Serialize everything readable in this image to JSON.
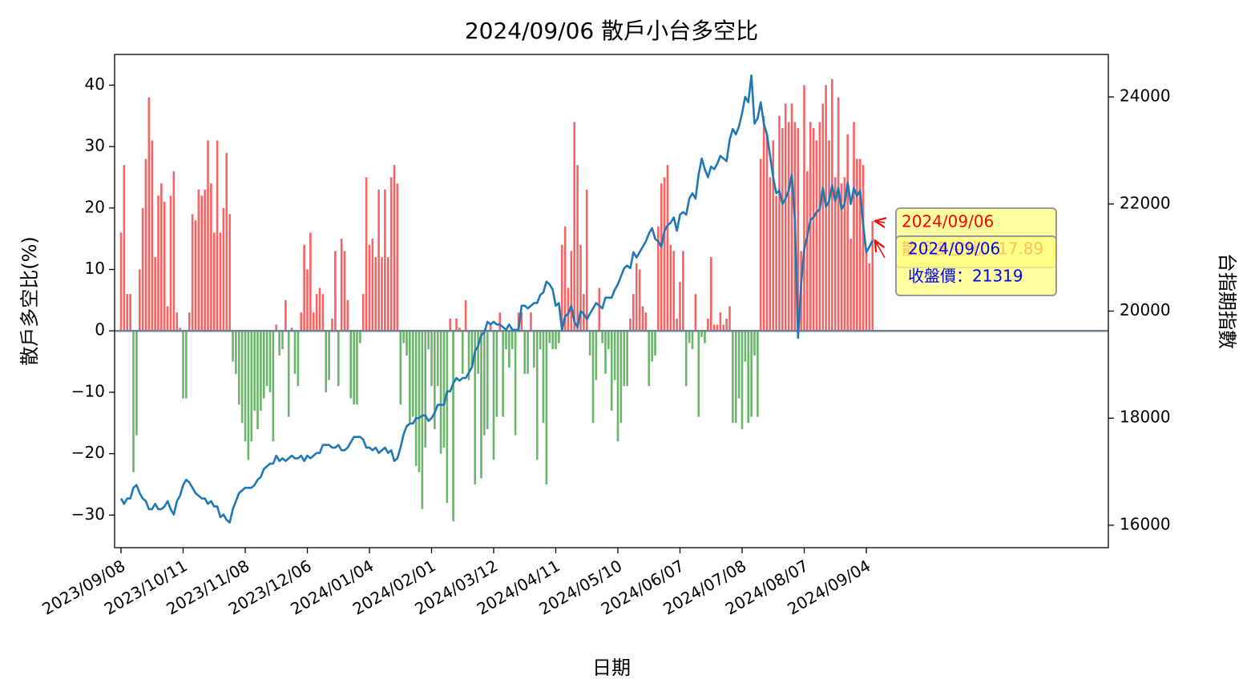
{
  "chart_data": {
    "type": "bar-line",
    "title": "2024/09/06 散戶小台多空比",
    "xlabel": "日期",
    "ylabel": "散戶多空比(%)",
    "y2label": "台指期指數",
    "categories": [
      "2023/09/08",
      null,
      null,
      null,
      null,
      null,
      null,
      null,
      null,
      null,
      null,
      null,
      null,
      null,
      null,
      null,
      null,
      null,
      null,
      null,
      "2023/10/11",
      null,
      null,
      null,
      null,
      null,
      null,
      null,
      null,
      null,
      null,
      null,
      null,
      null,
      null,
      null,
      null,
      null,
      null,
      null,
      "2023/11/08",
      null,
      null,
      null,
      null,
      null,
      null,
      null,
      null,
      null,
      null,
      null,
      null,
      null,
      null,
      null,
      null,
      null,
      null,
      null,
      "2023/12/06",
      null,
      null,
      null,
      null,
      null,
      null,
      null,
      null,
      null,
      null,
      null,
      null,
      null,
      null,
      null,
      null,
      null,
      null,
      null,
      "2024/01/04",
      null,
      null,
      null,
      null,
      null,
      null,
      null,
      null,
      null,
      null,
      null,
      null,
      null,
      null,
      null,
      null,
      null,
      null,
      null,
      "2024/02/01",
      null,
      null,
      null,
      null,
      null,
      null,
      null,
      null,
      null,
      null,
      null,
      null,
      null,
      null,
      null,
      null,
      null,
      null,
      null,
      "2024/03/12",
      null,
      null,
      null,
      null,
      null,
      null,
      null,
      null,
      null,
      null,
      null,
      null,
      null,
      null,
      null,
      null,
      null,
      null,
      null,
      "2024/04/11",
      null,
      null,
      null,
      null,
      null,
      null,
      null,
      null,
      null,
      null,
      null,
      null,
      null,
      null,
      null,
      null,
      null,
      null,
      null,
      "2024/05/10",
      null,
      null,
      null,
      null,
      null,
      null,
      null,
      null,
      null,
      null,
      null,
      null,
      null,
      null,
      null,
      null,
      null,
      null,
      null,
      "2024/06/07",
      null,
      null,
      null,
      null,
      null,
      null,
      null,
      null,
      null,
      null,
      null,
      null,
      null,
      null,
      null,
      null,
      null,
      null,
      null,
      "2024/07/08",
      null,
      null,
      null,
      null,
      null,
      null,
      null,
      null,
      null,
      null,
      null,
      null,
      null,
      null,
      null,
      null,
      null,
      null,
      null,
      "2024/08/07",
      null,
      null,
      null,
      null,
      null,
      null,
      null,
      null,
      null,
      null,
      null,
      null,
      null,
      null,
      null,
      null,
      null,
      null,
      null,
      "2024/09/04",
      null,
      null
    ],
    "series": [
      {
        "kind": "bar",
        "positive_color": "#f46464",
        "negative_color": "#6cb46c",
        "values": [
          16,
          27,
          6,
          6,
          -23,
          -17,
          10,
          20,
          28,
          38,
          31,
          12,
          22,
          24,
          21,
          4,
          22,
          26,
          3,
          0.5,
          -11,
          -11,
          3,
          19,
          18,
          23,
          22,
          23,
          31,
          24,
          16,
          31,
          16,
          20,
          29,
          19,
          -5,
          -7,
          -12,
          -15,
          -18,
          -21,
          -18,
          -13,
          -16,
          -13,
          -11,
          -9,
          -10,
          -18,
          1,
          -4,
          -3,
          5,
          -14,
          0.5,
          -7,
          -9,
          3,
          14,
          10,
          16,
          3,
          6,
          7,
          6,
          -10,
          -8,
          2,
          13,
          -9,
          15,
          13,
          5,
          -11,
          -12,
          -12,
          -2,
          6,
          25,
          14,
          15,
          12,
          23,
          12,
          23,
          12,
          25,
          27,
          24,
          -12,
          -2,
          -4,
          -15,
          -14,
          -22,
          -23,
          -29,
          -19,
          -3,
          -9,
          -16,
          -9,
          -20,
          -19,
          -28,
          2,
          -31,
          2,
          0.5,
          -7,
          5,
          -8,
          -6,
          -25,
          -7,
          -24,
          -17,
          -16,
          1,
          -21,
          -14,
          3,
          -14,
          -3,
          -6,
          -3,
          -17,
          3,
          3,
          -7,
          -7,
          3,
          -6,
          -21,
          -3,
          -15,
          -25,
          -2,
          -3,
          -3,
          -2,
          14,
          17,
          7,
          13,
          34,
          27,
          14,
          6,
          23,
          -4,
          -15,
          -8,
          7,
          -2,
          -7,
          -3,
          -13,
          -8,
          -18,
          -15,
          -9,
          -9,
          2,
          6,
          11,
          10,
          4,
          3,
          -9,
          -5,
          -4,
          17,
          24,
          25,
          27,
          14,
          13,
          2,
          8,
          13,
          -9,
          -2,
          -3,
          6,
          -14,
          -1,
          -2,
          2,
          12,
          1,
          1,
          3,
          1,
          2,
          4,
          -15,
          -15,
          -11,
          -16,
          -5,
          -15,
          -14,
          -4,
          -14,
          28,
          35,
          32,
          25,
          31,
          22,
          35,
          33,
          37,
          34,
          37,
          34,
          33,
          13,
          40,
          26,
          34,
          33,
          31,
          34,
          37,
          40,
          31,
          41,
          25,
          38,
          24,
          25,
          32,
          15,
          34,
          28,
          28,
          27,
          13,
          11,
          17.89
        ]
      },
      {
        "kind": "line",
        "axis": "y2",
        "color": "#1f77b4",
        "values": [
          16500,
          16400,
          16500,
          16500,
          16700,
          16750,
          16600,
          16500,
          16450,
          16300,
          16300,
          16400,
          16300,
          16300,
          16350,
          16450,
          16300,
          16200,
          16450,
          16550,
          16750,
          16850,
          16800,
          16700,
          16600,
          16550,
          16500,
          16500,
          16400,
          16450,
          16350,
          16350,
          16150,
          16200,
          16100,
          16050,
          16300,
          16450,
          16600,
          16650,
          16700,
          16700,
          16700,
          16750,
          16850,
          16900,
          17050,
          17100,
          17150,
          17150,
          17300,
          17200,
          17250,
          17200,
          17250,
          17300,
          17250,
          17250,
          17300,
          17200,
          17300,
          17250,
          17300,
          17350,
          17350,
          17500,
          17500,
          17500,
          17450,
          17450,
          17500,
          17400,
          17400,
          17450,
          17550,
          17650,
          17650,
          17650,
          17600,
          17450,
          17450,
          17400,
          17450,
          17350,
          17400,
          17450,
          17350,
          17400,
          17200,
          17250,
          17450,
          17700,
          17850,
          17900,
          17900,
          18000,
          18000,
          18050,
          18050,
          17950,
          18000,
          18100,
          18250,
          18250,
          18250,
          18500,
          18500,
          18650,
          18750,
          18700,
          18750,
          18750,
          18850,
          18950,
          19250,
          19350,
          19550,
          19600,
          19800,
          19750,
          19800,
          19750,
          19750,
          19700,
          19650,
          19750,
          19650,
          19650,
          19650,
          20100,
          20100,
          20050,
          20100,
          20150,
          20150,
          20300,
          20350,
          20550,
          20500,
          20400,
          20100,
          20150,
          19650,
          19900,
          19950,
          20100,
          19800,
          19700,
          20000,
          19950,
          19850,
          19950,
          20050,
          20150,
          20100,
          20050,
          20250,
          20250,
          20250,
          20400,
          20500,
          20650,
          20800,
          20850,
          20800,
          21100,
          21000,
          21100,
          21200,
          21300,
          21450,
          21550,
          21350,
          21300,
          21200,
          21500,
          21600,
          21650,
          21750,
          21500,
          21800,
          21850,
          21800,
          22100,
          22200,
          22100,
          22550,
          22850,
          22650,
          22500,
          22700,
          22650,
          22750,
          22900,
          22850,
          22800,
          23200,
          23400,
          23300,
          23450,
          23700,
          24000,
          23900,
          24400,
          23500,
          23600,
          23900,
          23500,
          23300,
          22900,
          22500,
          22200,
          22250,
          22000,
          22100,
          22250,
          22550,
          21700,
          19500,
          20500,
          21150,
          21400,
          21700,
          21750,
          21850,
          21900,
          22300,
          21950,
          22050,
          22350,
          22050,
          22300,
          21900,
          22000,
          22400,
          22000,
          22300,
          22150,
          22250,
          21600,
          21100,
          21200,
          21319
        ]
      }
    ],
    "ylim": [
      -35.3,
      45
    ],
    "yticks": [
      {
        "value": -30,
        "label": "−30"
      },
      {
        "value": -20,
        "label": "−20"
      },
      {
        "value": -10,
        "label": "−10"
      },
      0,
      10,
      20,
      30,
      40
    ],
    "y2lim": [
      15581,
      24793
    ],
    "y2ticks": [
      16000,
      18000,
      20000,
      22000,
      24000
    ],
    "zero_line_color": "#708090",
    "annotations": [
      {
        "color": "#ff0000",
        "lines": [
          "2024/09/06",
          "散戶多空比：17.89"
        ]
      },
      {
        "color": "#0000ff",
        "lines": [
          "2024/09/06",
          "收盤價：21319"
        ]
      }
    ]
  }
}
